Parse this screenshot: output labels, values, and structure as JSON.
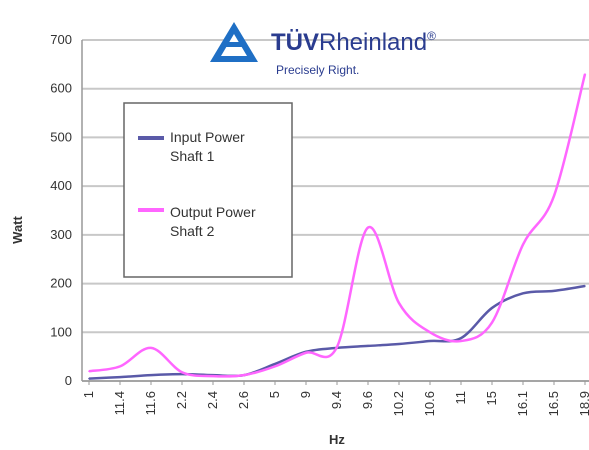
{
  "brand": {
    "name_bold": "TÜV",
    "name_rest": "Rheinland",
    "mark": "®",
    "tagline": "Precisely Right.",
    "color": "#1f6fc5"
  },
  "chart_data": {
    "type": "line",
    "xlabel": "Hz",
    "ylabel": "Watt",
    "ylim": [
      0,
      700
    ],
    "yticks": [
      0,
      100,
      200,
      300,
      400,
      500,
      600,
      700
    ],
    "grid": true,
    "legend_position": "upper-left",
    "categories": [
      "1",
      "11.4",
      "11.6",
      "2.2",
      "2.4",
      "2.6",
      "5",
      "9",
      "9.4",
      "9.6",
      "10.2",
      "10.6",
      "11",
      "15",
      "16.1",
      "16.5",
      "18.9"
    ],
    "series": [
      {
        "name_lines": [
          "Input Power",
          "Shaft 1"
        ],
        "color": "#5a5aa8",
        "values": [
          5,
          8,
          12,
          14,
          12,
          12,
          35,
          60,
          68,
          72,
          76,
          82,
          88,
          150,
          180,
          185,
          195
        ]
      },
      {
        "name_lines": [
          "Output Power",
          "Shaft 2"
        ],
        "color": "#ff66ff",
        "values": [
          20,
          30,
          68,
          18,
          10,
          12,
          30,
          58,
          70,
          315,
          160,
          100,
          82,
          120,
          280,
          380,
          630
        ]
      }
    ]
  }
}
